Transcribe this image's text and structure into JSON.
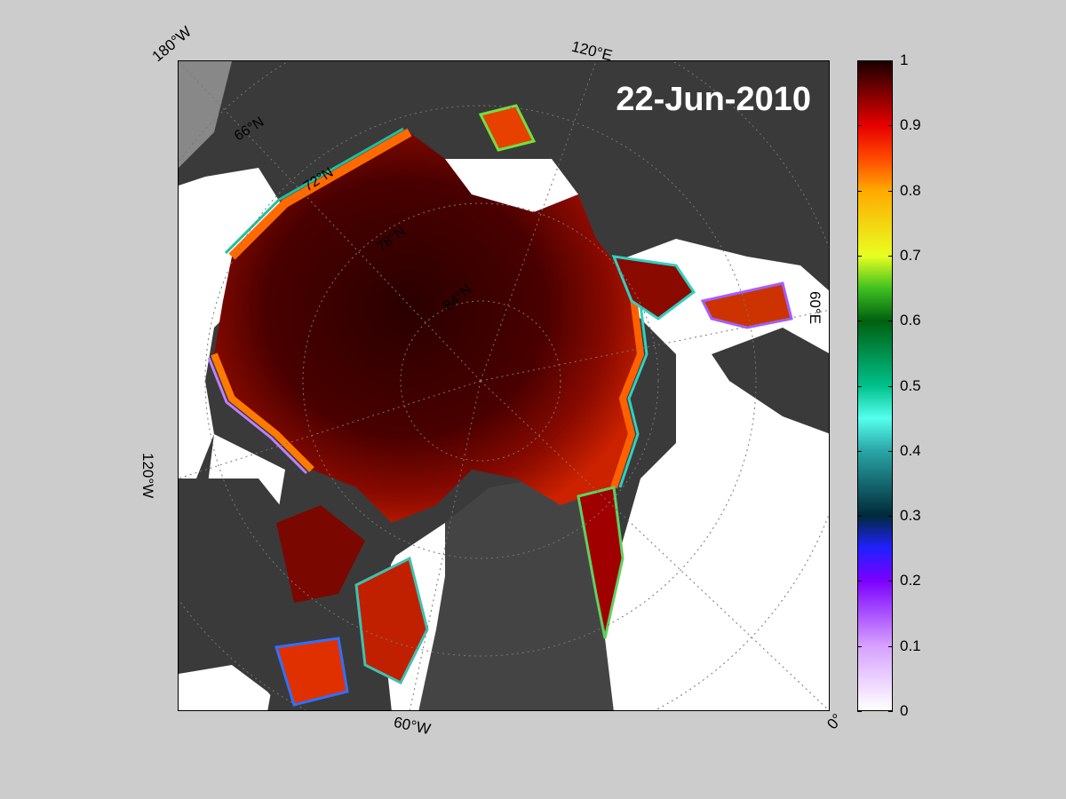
{
  "map": {
    "title": "22-Jun-2010",
    "longitude_labels": [
      "180°W",
      "120°E",
      "60°E",
      "0°",
      "60°W",
      "120°W"
    ],
    "latitude_labels": [
      "66°N",
      "72°N",
      "78°N",
      "84°N"
    ],
    "colors": {
      "land": "#3a3a3a",
      "greenland": "#444444",
      "open_water": "#ffffff",
      "graticule": "#777777",
      "outside_data": "#888888"
    }
  },
  "colorbar": {
    "ticks": [
      "0",
      "0.1",
      "0.2",
      "0.3",
      "0.4",
      "0.5",
      "0.6",
      "0.7",
      "0.8",
      "0.9",
      "1"
    ],
    "min": 0,
    "max": 1,
    "stops": [
      {
        "v": 0.0,
        "c": "#ffffff"
      },
      {
        "v": 0.1,
        "c": "#d6a0ff"
      },
      {
        "v": 0.2,
        "c": "#7a00ff"
      },
      {
        "v": 0.25,
        "c": "#2020ff"
      },
      {
        "v": 0.3,
        "c": "#002a3a"
      },
      {
        "v": 0.4,
        "c": "#2aa6a6"
      },
      {
        "v": 0.45,
        "c": "#55ffee"
      },
      {
        "v": 0.5,
        "c": "#00c08a"
      },
      {
        "v": 0.6,
        "c": "#006010"
      },
      {
        "v": 0.65,
        "c": "#40c020"
      },
      {
        "v": 0.7,
        "c": "#e8ff20"
      },
      {
        "v": 0.8,
        "c": "#ffaa00"
      },
      {
        "v": 0.85,
        "c": "#ff4a00"
      },
      {
        "v": 0.9,
        "c": "#e80000"
      },
      {
        "v": 1.0,
        "c": "#1a0000"
      }
    ]
  }
}
